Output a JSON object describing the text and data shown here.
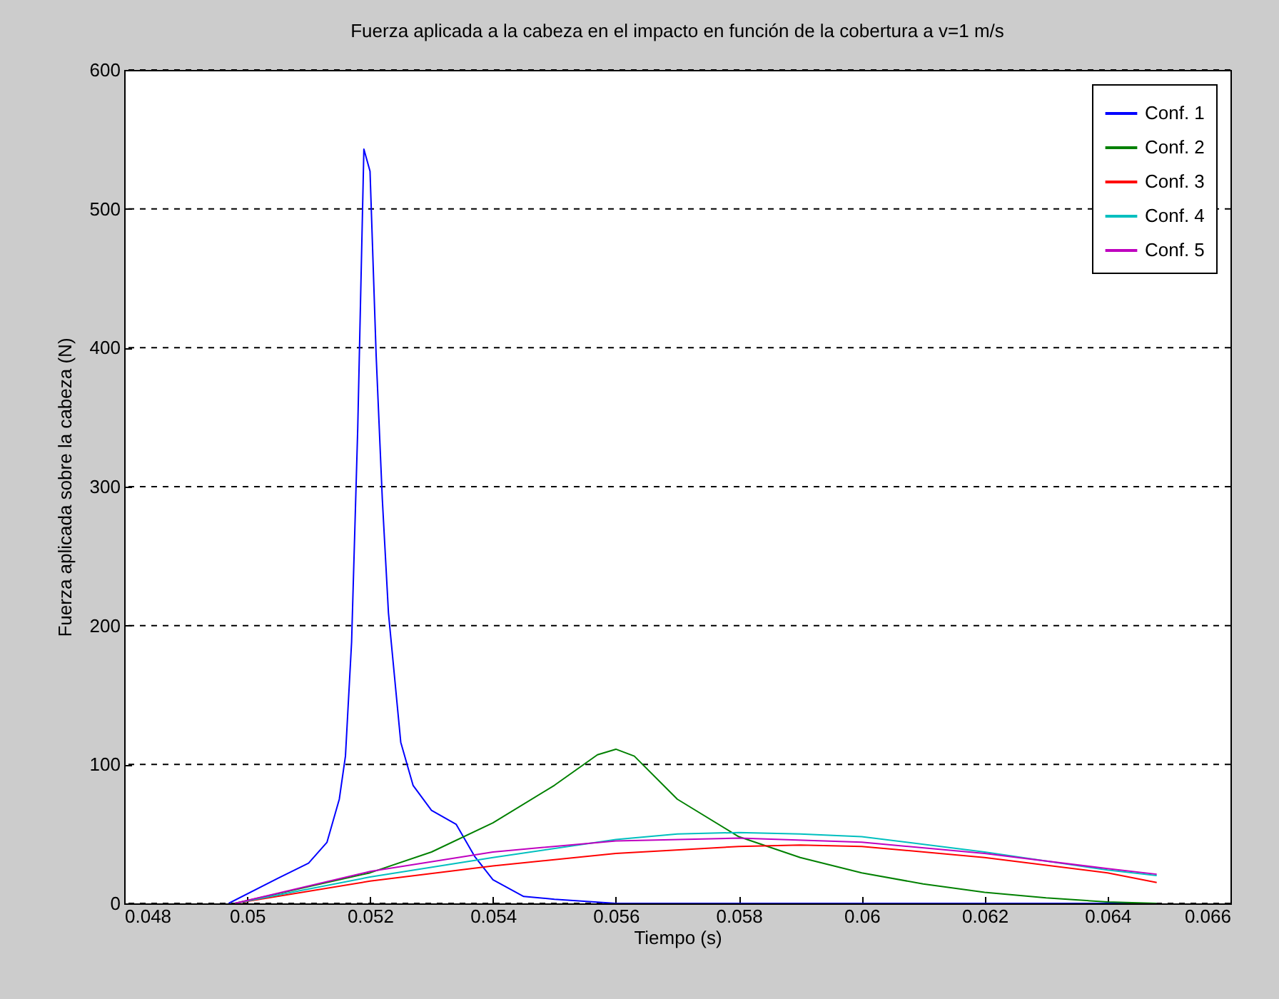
{
  "chart_data": {
    "type": "line",
    "title": "Fuerza aplicada a la cabeza en el impacto en función de la cobertura a v=1 m/s",
    "xlabel": "Tiempo (s)",
    "ylabel": "Fuerza aplicada sobre la cabeza (N)",
    "xlim": [
      0.048,
      0.066
    ],
    "xticks": [
      0.048,
      0.05,
      0.052,
      0.054,
      0.056,
      0.058,
      0.06,
      0.062,
      0.064,
      0.066
    ],
    "ylim": [
      0,
      600
    ],
    "yticks": [
      0,
      100,
      200,
      300,
      400,
      500,
      600
    ],
    "grid": "y",
    "legend": "top right",
    "line_style": "solid",
    "series": [
      {
        "name": "Conf. 1",
        "color": "#0000ff",
        "x": [
          0.0497,
          0.0505,
          0.051,
          0.0513,
          0.0515,
          0.0516,
          0.0517,
          0.0518,
          0.0519,
          0.052,
          0.0521,
          0.0522,
          0.0523,
          0.0525,
          0.0527,
          0.053,
          0.0534,
          0.0537,
          0.054,
          0.0545,
          0.055,
          0.056,
          0.058,
          0.06,
          0.062,
          0.0648
        ],
        "values": [
          0,
          18,
          29,
          44,
          75,
          106,
          188,
          342,
          543,
          527,
          394,
          291,
          209,
          116,
          85,
          67,
          57,
          34,
          17,
          5,
          3,
          0,
          0,
          0,
          0,
          0
        ]
      },
      {
        "name": "Conf. 2",
        "color": "#008000",
        "x": [
          0.0498,
          0.051,
          0.052,
          0.053,
          0.054,
          0.055,
          0.0557,
          0.056,
          0.0563,
          0.057,
          0.058,
          0.059,
          0.06,
          0.061,
          0.062,
          0.063,
          0.064,
          0.0648
        ],
        "values": [
          0,
          12,
          22,
          37,
          58,
          85,
          107,
          111,
          106,
          75,
          48,
          33,
          22,
          14,
          8,
          4,
          1,
          0
        ]
      },
      {
        "name": "Conf. 3",
        "color": "#ff0000",
        "x": [
          0.0498,
          0.052,
          0.054,
          0.056,
          0.058,
          0.059,
          0.06,
          0.062,
          0.064,
          0.0648
        ],
        "values": [
          0,
          16,
          27,
          36,
          41,
          42,
          41,
          33,
          22,
          15
        ]
      },
      {
        "name": "Conf. 4",
        "color": "#00bfbf",
        "x": [
          0.0498,
          0.052,
          0.054,
          0.056,
          0.057,
          0.058,
          0.059,
          0.06,
          0.062,
          0.064,
          0.0648
        ],
        "values": [
          0,
          19,
          33,
          46,
          50,
          51,
          50,
          48,
          37,
          24,
          20
        ]
      },
      {
        "name": "Conf. 5",
        "color": "#bf00bf",
        "x": [
          0.0498,
          0.052,
          0.054,
          0.056,
          0.058,
          0.06,
          0.062,
          0.064,
          0.0648
        ],
        "values": [
          0,
          23,
          37,
          45,
          47,
          44,
          36,
          25,
          21
        ]
      }
    ]
  }
}
